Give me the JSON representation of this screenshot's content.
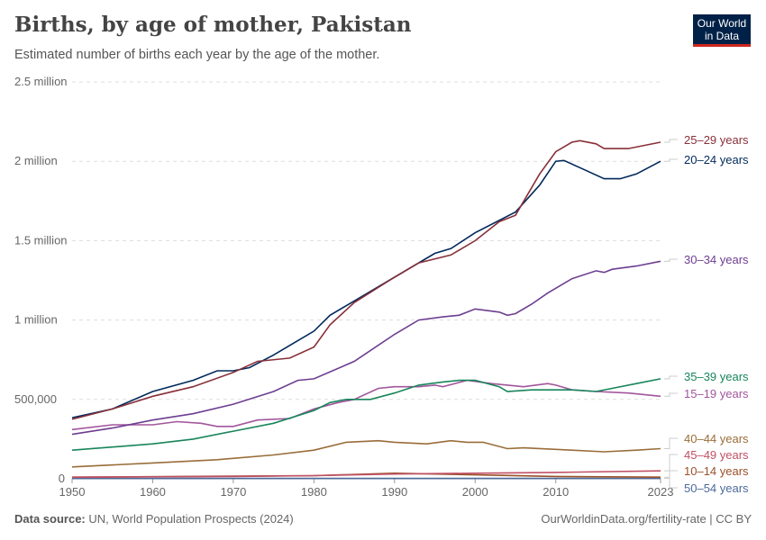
{
  "title": "Births, by age of mother, Pakistan",
  "subtitle": "Estimated number of births each year by the age of the mother.",
  "logo": "Our World in Data",
  "source_label": "Data source:",
  "source": "UN, World Population Prospects (2024)",
  "credit": "OurWorldinData.org/fertility-rate | CC BY",
  "chart_data": {
    "type": "line",
    "xlim": [
      1950,
      2023
    ],
    "ylim": [
      0,
      2500000
    ],
    "grid": "horizontal dashed",
    "yticks": [
      {
        "v": 0,
        "label": "0"
      },
      {
        "v": 500000,
        "label": "500,000"
      },
      {
        "v": 1000000,
        "label": "1 million"
      },
      {
        "v": 1500000,
        "label": "1.5 million"
      },
      {
        "v": 2000000,
        "label": "2 million"
      },
      {
        "v": 2500000,
        "label": "2.5 million"
      }
    ],
    "xticks": [
      {
        "v": 1950,
        "label": "1950"
      },
      {
        "v": 1960,
        "label": "1960"
      },
      {
        "v": 1970,
        "label": "1970"
      },
      {
        "v": 1980,
        "label": "1980"
      },
      {
        "v": 1990,
        "label": "1990"
      },
      {
        "v": 2000,
        "label": "2000"
      },
      {
        "v": 2010,
        "label": "2010"
      },
      {
        "v": 2023,
        "label": "2023"
      }
    ],
    "series": [
      {
        "name": "25–29 years",
        "color": "#883039",
        "labelY": 159,
        "points": [
          [
            1950,
            375000
          ],
          [
            1955,
            440000
          ],
          [
            1960,
            520000
          ],
          [
            1965,
            580000
          ],
          [
            1970,
            670000
          ],
          [
            1973,
            740000
          ],
          [
            1977,
            760000
          ],
          [
            1980,
            830000
          ],
          [
            1982,
            970000
          ],
          [
            1985,
            1110000
          ],
          [
            1990,
            1270000
          ],
          [
            1993,
            1360000
          ],
          [
            1997,
            1410000
          ],
          [
            2000,
            1500000
          ],
          [
            2003,
            1620000
          ],
          [
            2005,
            1660000
          ],
          [
            2008,
            1920000
          ],
          [
            2010,
            2060000
          ],
          [
            2012,
            2120000
          ],
          [
            2013,
            2130000
          ],
          [
            2015,
            2110000
          ],
          [
            2016,
            2080000
          ],
          [
            2019,
            2080000
          ],
          [
            2023,
            2120000
          ]
        ]
      },
      {
        "name": "20–24 years",
        "color": "#00295b",
        "labelY": 181,
        "points": [
          [
            1950,
            385000
          ],
          [
            1955,
            440000
          ],
          [
            1960,
            550000
          ],
          [
            1965,
            620000
          ],
          [
            1968,
            680000
          ],
          [
            1970,
            680000
          ],
          [
            1972,
            700000
          ],
          [
            1975,
            780000
          ],
          [
            1980,
            930000
          ],
          [
            1982,
            1030000
          ],
          [
            1985,
            1120000
          ],
          [
            1990,
            1270000
          ],
          [
            1995,
            1420000
          ],
          [
            1997,
            1450000
          ],
          [
            2000,
            1550000
          ],
          [
            2005,
            1680000
          ],
          [
            2008,
            1850000
          ],
          [
            2010,
            2000000
          ],
          [
            2011,
            2005000
          ],
          [
            2013,
            1960000
          ],
          [
            2016,
            1890000
          ],
          [
            2018,
            1890000
          ],
          [
            2020,
            1920000
          ],
          [
            2023,
            2000000
          ]
        ]
      },
      {
        "name": "30–34 years",
        "color": "#6d3e91",
        "labelY": 292,
        "points": [
          [
            1950,
            280000
          ],
          [
            1955,
            320000
          ],
          [
            1960,
            370000
          ],
          [
            1965,
            410000
          ],
          [
            1970,
            470000
          ],
          [
            1975,
            550000
          ],
          [
            1978,
            620000
          ],
          [
            1980,
            630000
          ],
          [
            1985,
            740000
          ],
          [
            1990,
            910000
          ],
          [
            1993,
            1000000
          ],
          [
            1996,
            1020000
          ],
          [
            1998,
            1030000
          ],
          [
            2000,
            1070000
          ],
          [
            2003,
            1050000
          ],
          [
            2004,
            1030000
          ],
          [
            2005,
            1040000
          ],
          [
            2007,
            1100000
          ],
          [
            2009,
            1170000
          ],
          [
            2012,
            1260000
          ],
          [
            2015,
            1310000
          ],
          [
            2016,
            1300000
          ],
          [
            2017,
            1320000
          ],
          [
            2020,
            1340000
          ],
          [
            2023,
            1370000
          ]
        ]
      },
      {
        "name": "35–39 years",
        "color": "#18855b",
        "labelY": 422,
        "points": [
          [
            1950,
            180000
          ],
          [
            1960,
            220000
          ],
          [
            1965,
            250000
          ],
          [
            1970,
            300000
          ],
          [
            1975,
            350000
          ],
          [
            1980,
            430000
          ],
          [
            1982,
            480000
          ],
          [
            1984,
            500000
          ],
          [
            1987,
            500000
          ],
          [
            1990,
            540000
          ],
          [
            1993,
            590000
          ],
          [
            1996,
            610000
          ],
          [
            1998,
            620000
          ],
          [
            2000,
            620000
          ],
          [
            2003,
            580000
          ],
          [
            2004,
            550000
          ],
          [
            2007,
            560000
          ],
          [
            2012,
            560000
          ],
          [
            2015,
            550000
          ],
          [
            2017,
            570000
          ],
          [
            2020,
            600000
          ],
          [
            2023,
            630000
          ]
        ]
      },
      {
        "name": "15–19 years",
        "color": "#a2559c",
        "labelY": 441,
        "points": [
          [
            1950,
            310000
          ],
          [
            1955,
            340000
          ],
          [
            1960,
            340000
          ],
          [
            1963,
            360000
          ],
          [
            1966,
            350000
          ],
          [
            1968,
            330000
          ],
          [
            1970,
            330000
          ],
          [
            1973,
            370000
          ],
          [
            1977,
            380000
          ],
          [
            1980,
            440000
          ],
          [
            1983,
            480000
          ],
          [
            1985,
            500000
          ],
          [
            1988,
            570000
          ],
          [
            1990,
            580000
          ],
          [
            1993,
            580000
          ],
          [
            1995,
            590000
          ],
          [
            1996,
            580000
          ],
          [
            1999,
            620000
          ],
          [
            2002,
            600000
          ],
          [
            2006,
            580000
          ],
          [
            2009,
            600000
          ],
          [
            2010,
            590000
          ],
          [
            2012,
            560000
          ],
          [
            2015,
            550000
          ],
          [
            2019,
            540000
          ],
          [
            2023,
            520000
          ]
        ]
      },
      {
        "name": "40–44 years",
        "color": "#996d39",
        "labelY": 491,
        "points": [
          [
            1950,
            75000
          ],
          [
            1960,
            100000
          ],
          [
            1968,
            120000
          ],
          [
            1975,
            150000
          ],
          [
            1980,
            180000
          ],
          [
            1984,
            230000
          ],
          [
            1988,
            240000
          ],
          [
            1990,
            230000
          ],
          [
            1994,
            220000
          ],
          [
            1997,
            240000
          ],
          [
            1999,
            230000
          ],
          [
            2001,
            230000
          ],
          [
            2004,
            190000
          ],
          [
            2006,
            195000
          ],
          [
            2012,
            180000
          ],
          [
            2016,
            170000
          ],
          [
            2020,
            180000
          ],
          [
            2023,
            190000
          ]
        ]
      },
      {
        "name": "45–49 years",
        "color": "#c15065",
        "labelY": 509,
        "points": [
          [
            1950,
            10000
          ],
          [
            1970,
            15000
          ],
          [
            1980,
            20000
          ],
          [
            1990,
            30000
          ],
          [
            2000,
            35000
          ],
          [
            2010,
            40000
          ],
          [
            2023,
            50000
          ]
        ]
      },
      {
        "name": "10–14 years",
        "color": "#9a5129",
        "labelY": 527,
        "points": [
          [
            1950,
            10000
          ],
          [
            1980,
            20000
          ],
          [
            1990,
            35000
          ],
          [
            2000,
            25000
          ],
          [
            2010,
            15000
          ],
          [
            2023,
            10000
          ]
        ]
      },
      {
        "name": "50–54 years",
        "color": "#4c6a9c",
        "labelY": 546,
        "points": [
          [
            1950,
            2000
          ],
          [
            2023,
            3000
          ]
        ]
      }
    ]
  }
}
